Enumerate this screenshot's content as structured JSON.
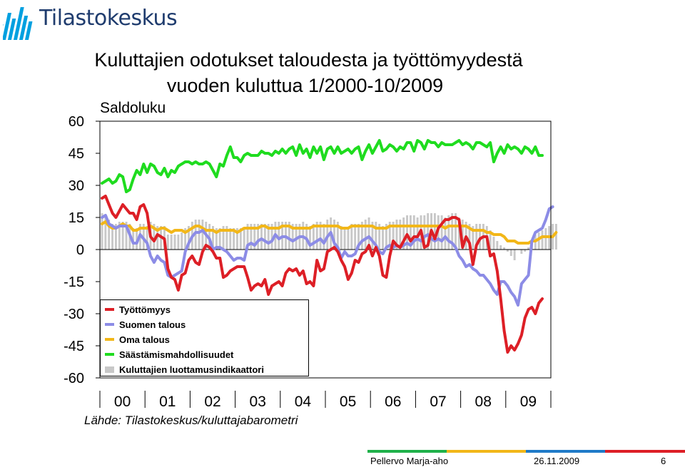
{
  "brand": {
    "name": "Tilastokeskus"
  },
  "title_line1": "Kuluttajien odotukset taloudesta ja työttömyydestä",
  "title_line2": "vuoden kuluttua 1/2000-10/2009",
  "source": "Lähde: Tilastokeskus/kuluttajabarometri",
  "footer": {
    "author": "Pellervo Marja-aho",
    "date": "26.11.2009",
    "page": "6"
  },
  "colors": {
    "unemployment": "#dd1f26",
    "finnish_economy": "#8c8ce6",
    "own_economy": "#f2b719",
    "saving": "#1fdc1f",
    "confidence": "#c8c8c8",
    "logo_bars": "#00a0e0"
  },
  "chart_data": {
    "type": "line",
    "ylabel": "Saldoluku",
    "ylim": [
      -60,
      60
    ],
    "yticks": [
      "60",
      "45",
      "30",
      "15",
      "0",
      "-15",
      "-30",
      "-45",
      "-60"
    ],
    "x_ticklabels": [
      "00",
      "01",
      "02",
      "03",
      "04",
      "05",
      "06",
      "07",
      "08",
      "09"
    ],
    "x_start": "2000-01",
    "x_end": "2009-10",
    "legend": [
      "Työttömyys",
      "Suomen talous",
      "Oma talous",
      "Säästämismahdollisuudet",
      "Kuluttajien luottamusindikaattori"
    ],
    "legend_position": "bottom-left",
    "series": [
      {
        "name": "Työttömyys",
        "kind": "line",
        "values": [
          24,
          25,
          21,
          17,
          15,
          18,
          21,
          19,
          17,
          17,
          14,
          20,
          21,
          17,
          6,
          4,
          7,
          6,
          5,
          -9,
          -13,
          -14,
          -19,
          -12,
          -11,
          -5,
          -3,
          -6,
          -7,
          -1,
          2,
          1,
          -1,
          -4,
          -4,
          -13,
          -12,
          -10,
          -9,
          -8,
          -8,
          -8,
          -13,
          -19,
          -17,
          -16,
          -17,
          -14,
          -21,
          -17,
          -16,
          -15,
          -17,
          -11,
          -9,
          -10,
          -9,
          -12,
          -10,
          -16,
          -15,
          -17,
          -5,
          -10,
          -9,
          -1,
          0,
          1,
          -1,
          -5,
          -8,
          -14,
          -11,
          -5,
          -6,
          -2,
          -1,
          2,
          -3,
          1,
          -3,
          -12,
          -13,
          -3,
          4,
          2,
          1,
          4,
          7,
          4,
          6,
          6,
          9,
          1,
          2,
          9,
          5,
          10,
          12,
          14,
          14,
          15,
          15,
          14,
          1,
          6,
          3,
          -7,
          2,
          5,
          6,
          6,
          -3,
          -2,
          -10,
          -23,
          -38,
          -48,
          -45,
          -47,
          -44,
          -40,
          -32,
          -28,
          -27,
          -30,
          -25,
          -23
        ]
      },
      {
        "name": "Suomen talous",
        "kind": "line",
        "values": [
          15,
          16,
          12,
          11,
          10,
          11,
          11,
          11,
          7,
          3,
          3,
          7,
          5,
          3,
          -3,
          -6,
          -3,
          -5,
          -6,
          -12,
          -13,
          -12,
          -11,
          -10,
          -1,
          3,
          6,
          8,
          8,
          9,
          7,
          5,
          0,
          1,
          1,
          0,
          -1,
          -3,
          -5,
          -4,
          -4,
          -5,
          2,
          3,
          2,
          4,
          5,
          4,
          3,
          4,
          7,
          5,
          6,
          6,
          5,
          4,
          5,
          6,
          6,
          5,
          2,
          3,
          4,
          5,
          3,
          6,
          8,
          3,
          1,
          -4,
          -1,
          -3,
          -3,
          -2,
          2,
          4,
          5,
          6,
          4,
          2,
          -1,
          -2,
          1,
          2,
          1,
          2,
          1,
          2,
          3,
          2,
          4,
          5,
          4,
          6,
          7,
          5,
          4,
          5,
          4,
          6,
          4,
          3,
          1,
          -3,
          -5,
          -8,
          -7,
          -9,
          -10,
          -12,
          -12,
          -14,
          -16,
          -19,
          -21,
          -15,
          -15,
          -17,
          -20,
          -22,
          -26,
          -16,
          -14,
          -12,
          4,
          8,
          9,
          10,
          14,
          19,
          20
        ]
      },
      {
        "name": "Oma talous",
        "kind": "line",
        "values": [
          12,
          13,
          11,
          10,
          10,
          11,
          12,
          11,
          11,
          9,
          9,
          10,
          10,
          10,
          11,
          10,
          9,
          10,
          10,
          9,
          8,
          9,
          9,
          9,
          8,
          9,
          10,
          11,
          11,
          10,
          9,
          9,
          9,
          8,
          9,
          9,
          9,
          9,
          9,
          8,
          9,
          10,
          10,
          10,
          10,
          10,
          11,
          11,
          10,
          10,
          10,
          10,
          11,
          11,
          11,
          10,
          10,
          10,
          10,
          10,
          10,
          11,
          11,
          11,
          11,
          11,
          11,
          11,
          11,
          10,
          10,
          10,
          11,
          11,
          11,
          11,
          11,
          11,
          11,
          10,
          10,
          10,
          10,
          11,
          11,
          11,
          11,
          11,
          11,
          11,
          11,
          11,
          11,
          11,
          11,
          11,
          11,
          11,
          11,
          10,
          11,
          11,
          11,
          11,
          11,
          11,
          10,
          9,
          9,
          9,
          9,
          8,
          8,
          7,
          7,
          7,
          6,
          4,
          4,
          4,
          3,
          3,
          3,
          3,
          4,
          4,
          5,
          6,
          6,
          6,
          6,
          8
        ]
      },
      {
        "name": "Säästämismahdollisuudet",
        "kind": "line",
        "values": [
          31,
          32,
          33,
          31,
          32,
          35,
          34,
          27,
          28,
          33,
          37,
          35,
          40,
          36,
          40,
          39,
          36,
          35,
          38,
          34,
          37,
          36,
          39,
          40,
          41,
          41,
          40,
          41,
          40,
          40,
          41,
          40,
          37,
          34,
          40,
          39,
          44,
          48,
          43,
          43,
          41,
          44,
          45,
          44,
          44,
          44,
          46,
          45,
          45,
          44,
          46,
          45,
          47,
          45,
          47,
          48,
          44,
          49,
          45,
          47,
          43,
          48,
          45,
          48,
          42,
          47,
          48,
          45,
          48,
          45,
          46,
          47,
          45,
          47,
          48,
          42,
          46,
          49,
          45,
          48,
          51,
          46,
          47,
          49,
          48,
          46,
          48,
          47,
          50,
          50,
          46,
          51,
          50,
          47,
          51,
          50,
          50,
          48,
          50,
          49,
          49,
          49,
          50,
          51,
          49,
          50,
          49,
          47,
          50,
          50,
          49,
          48,
          50,
          41,
          45,
          48,
          45,
          49,
          47,
          48,
          47,
          45,
          48,
          47,
          45,
          48,
          44,
          44
        ]
      },
      {
        "name": "Kuluttajien luottamusindikaattori",
        "kind": "bar",
        "values": [
          17,
          16,
          14,
          12,
          12,
          13,
          13,
          13,
          12,
          10,
          10,
          12,
          12,
          11,
          13,
          12,
          11,
          11,
          11,
          7,
          7,
          7,
          7,
          8,
          10,
          11,
          13,
          14,
          14,
          14,
          13,
          12,
          11,
          10,
          10,
          11,
          11,
          10,
          10,
          10,
          10,
          10,
          12,
          12,
          12,
          12,
          12,
          12,
          12,
          12,
          13,
          13,
          13,
          13,
          13,
          12,
          12,
          12,
          13,
          12,
          11,
          12,
          13,
          13,
          12,
          14,
          15,
          14,
          13,
          11,
          10,
          10,
          12,
          12,
          12,
          13,
          14,
          15,
          13,
          13,
          12,
          11,
          12,
          13,
          13,
          14,
          14,
          15,
          16,
          16,
          16,
          15,
          16,
          16,
          17,
          17,
          17,
          16,
          16,
          15,
          16,
          17,
          17,
          15,
          14,
          13,
          12,
          11,
          12,
          12,
          12,
          11,
          9,
          6,
          4,
          2,
          1,
          -1,
          -3,
          -5,
          0,
          -2,
          -1,
          1,
          4,
          7,
          8,
          9,
          10,
          11,
          12,
          12
        ]
      }
    ]
  }
}
